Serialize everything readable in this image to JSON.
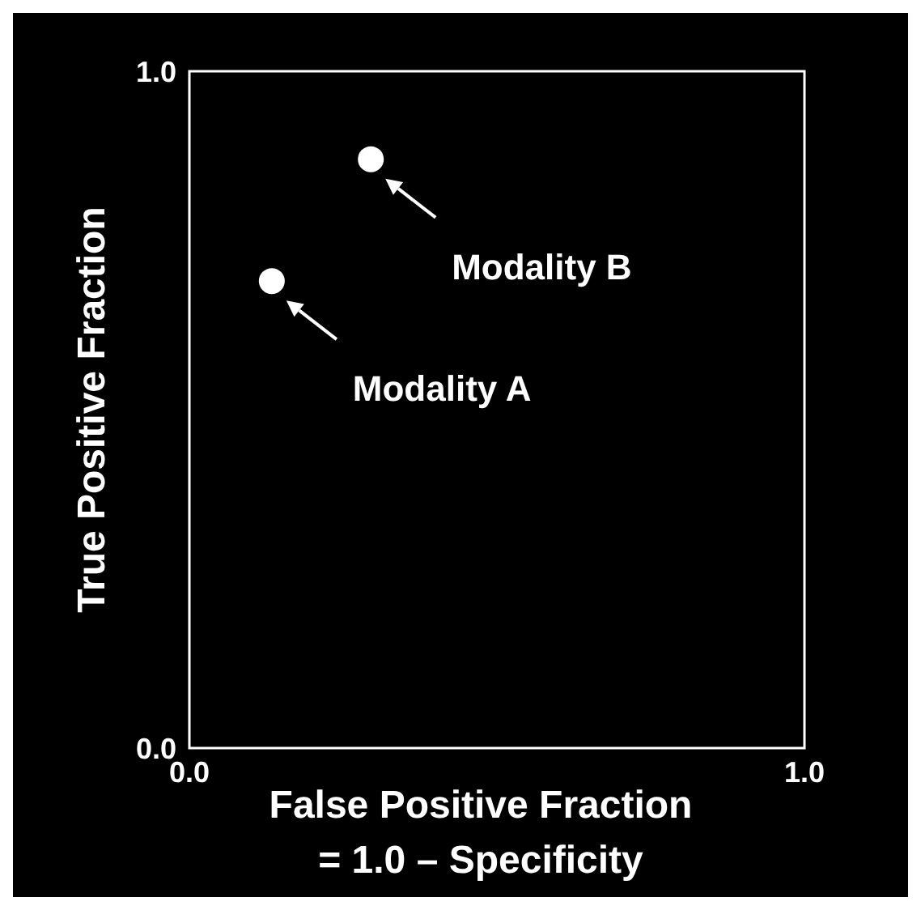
{
  "chart_data": {
    "type": "scatter",
    "xlabel": "False Positive Fraction\n= 1.0 – Specificity",
    "ylabel": "True Positive Fraction",
    "x": [
      0.134,
      0.295
    ],
    "values": [
      0.69,
      0.87
    ],
    "color": "#ffffff",
    "marker": "circle",
    "xlim": [
      0,
      1
    ],
    "ylim": [
      0,
      1
    ],
    "xticks": [
      {
        "value": 0,
        "label": "0.0"
      },
      {
        "value": 1,
        "label": "1.0"
      }
    ],
    "yticks": [
      {
        "value": 0,
        "label": "0.0"
      },
      {
        "value": 1,
        "label": "1.0"
      }
    ],
    "annotations": [
      "Modality A",
      "Modality B"
    ]
  }
}
